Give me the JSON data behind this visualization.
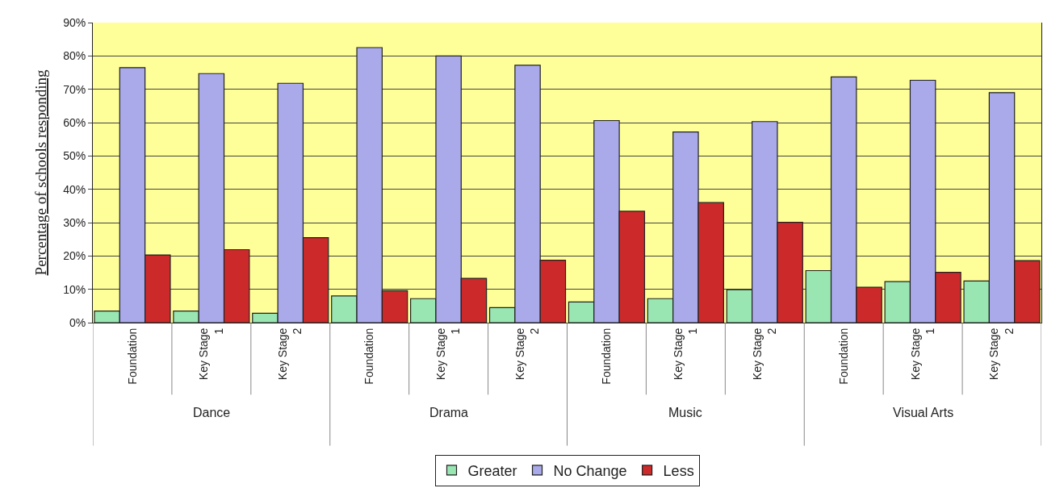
{
  "chart_data": {
    "type": "bar",
    "ylabel": "Percentage of schools responding",
    "categories": [
      "Foundation",
      "Key Stage\n1",
      "Key Stage\n2",
      "Foundation",
      "Key Stage\n1",
      "Key Stage\n2",
      "Foundation",
      "Key Stage\n1",
      "Key Stage\n2",
      "Foundation",
      "Key Stage\n1",
      "Key Stage\n2"
    ],
    "annotations": [
      "Dance",
      "Drama",
      "Music",
      "Visual Arts"
    ],
    "series": [
      {
        "name": "Greater",
        "color": "#99e6b3",
        "values": [
          3.5,
          3.5,
          2.8,
          8,
          7.2,
          4.5,
          6.2,
          7.2,
          9.9,
          15.6,
          12.3,
          12.5
        ]
      },
      {
        "name": "No Change",
        "color": "#aaaaea",
        "values": [
          76.5,
          74.7,
          71.8,
          82.5,
          80,
          77.2,
          60.6,
          57.2,
          60.3,
          73.7,
          72.7,
          69
        ]
      },
      {
        "name": "Less",
        "color": "#cc2a2a",
        "values": [
          20.3,
          21.9,
          25.5,
          9.6,
          13.3,
          18.7,
          33.4,
          36,
          30.1,
          10.6,
          15.1,
          18.6
        ]
      }
    ],
    "ylim": [
      0,
      90
    ],
    "yticks": [
      {
        "value": 0,
        "label": "0%"
      },
      {
        "value": 10,
        "label": "10%"
      },
      {
        "value": 20,
        "label": "20%"
      },
      {
        "value": 30,
        "label": "30%"
      },
      {
        "value": 40,
        "label": "40%"
      },
      {
        "value": 50,
        "label": "50%"
      },
      {
        "value": 60,
        "label": "60%"
      },
      {
        "value": 70,
        "label": "70%"
      },
      {
        "value": 80,
        "label": "80%"
      },
      {
        "value": 90,
        "label": "90%"
      }
    ],
    "grid": "y",
    "legend": "bottom"
  }
}
